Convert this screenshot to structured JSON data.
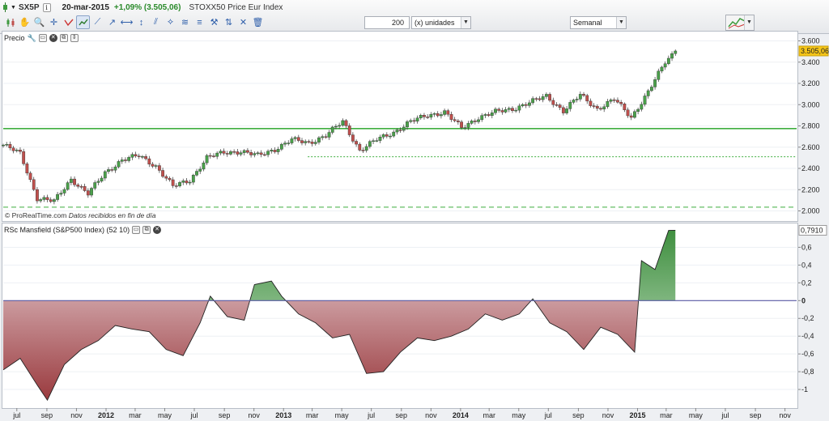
{
  "toolbar": {
    "symbol": "SX5P",
    "date": "20-mar-2015",
    "change": "+1,09% (3.505,06)",
    "instrument_name": "STOXX50 Price Eur Index",
    "units_value": "200",
    "units_label": "(x) unidades",
    "period": "Semanal",
    "tool_icons": [
      "candlestick-icon",
      "line-style-icon",
      "hand-icon",
      "zoom-icon",
      "trendline-red-icon",
      "indicator-icon",
      "line-tool-icon",
      "ray-tool-icon",
      "vertical-line-icon",
      "parallel-tool-icon",
      "fan-tool-icon",
      "channel-icon",
      "fibonacci-icon",
      "hammer-icon",
      "arrows-icon",
      "cross-icon",
      "trash-icon"
    ],
    "colors": {
      "positive": "#2a8a2a"
    }
  },
  "main_panel": {
    "label": "Precio",
    "credit_brand": "© ProRealTime.com",
    "credit_note": "Datos recibidos en fin de día"
  },
  "rs_panel": {
    "label": "RSc Mansfield (S&P500 Index) (52 10)"
  },
  "chart_data": [
    {
      "type": "candlestick",
      "title": "SX5P",
      "ylim": [
        1920,
        3680
      ],
      "yticks": [
        2000,
        2200,
        2400,
        2600,
        2800,
        3000,
        3200,
        3400,
        3600
      ],
      "ytick_labels": [
        "2.000",
        "2.200",
        "2.400",
        "2.600",
        "2.800",
        "3.000",
        "3.200",
        "3.400",
        "3.600"
      ],
      "last_value_label": "3.505,06",
      "last_value": 3505.06,
      "horizontal_lines": [
        {
          "value": 2775,
          "style": "solid",
          "color": "#3fae3f"
        },
        {
          "value": 2510,
          "style": "dotted",
          "color": "#3fae3f",
          "start_date": "2013-02-20"
        },
        {
          "value": 2035,
          "style": "dashed",
          "color": "#3fae3f"
        }
      ],
      "colors": {
        "up": "#4aa14a",
        "down": "#c0504d"
      },
      "close_series": {
        "x": [
          "2011-06-03",
          "2011-07-08",
          "2011-08-12",
          "2011-09-16",
          "2011-10-21",
          "2011-11-25",
          "2011-12-30",
          "2012-02-03",
          "2012-03-09",
          "2012-04-13",
          "2012-05-18",
          "2012-06-22",
          "2012-07-27",
          "2012-08-31",
          "2012-10-05",
          "2012-11-09",
          "2012-12-14",
          "2013-01-18",
          "2013-02-22",
          "2013-03-29",
          "2013-05-03",
          "2013-06-07",
          "2013-07-12",
          "2013-08-16",
          "2013-09-20",
          "2013-10-25",
          "2013-11-29",
          "2014-01-03",
          "2014-02-07",
          "2014-03-14",
          "2014-04-18",
          "2014-05-23",
          "2014-06-27",
          "2014-08-01",
          "2014-09-05",
          "2014-10-10",
          "2014-11-14",
          "2014-12-19",
          "2015-01-23",
          "2015-02-27",
          "2015-03-20"
        ],
        "y": [
          2620,
          2540,
          2120,
          2090,
          2300,
          2160,
          2360,
          2480,
          2520,
          2420,
          2230,
          2290,
          2500,
          2550,
          2560,
          2520,
          2580,
          2670,
          2640,
          2710,
          2840,
          2570,
          2670,
          2740,
          2840,
          2900,
          2930,
          2780,
          2880,
          2930,
          2960,
          3020,
          3080,
          2940,
          3090,
          2960,
          3050,
          2880,
          3120,
          3400,
          3505.06
        ]
      }
    },
    {
      "type": "area",
      "title": "RSc Mansfield (S&P500 Index) (52 10)",
      "ylim": [
        -1.2,
        0.85
      ],
      "yticks": [
        -1,
        -0.8,
        -0.6,
        -0.4,
        -0.2,
        0,
        0.2,
        0.4,
        0.6
      ],
      "ytick_labels": [
        "-1",
        "-0,8",
        "-0,6",
        "-0,4",
        "-0,2",
        "0",
        "0,2",
        "0,4",
        "0,6"
      ],
      "last_value_label": "0,7910",
      "last_value": 0.791,
      "colors": {
        "positive": "#4f9a4f",
        "negative": "#b84a4a",
        "zero_line": "#5a5aa5"
      },
      "x": [
        "2011-06-03",
        "2011-07-08",
        "2011-08-12",
        "2011-09-02",
        "2011-10-07",
        "2011-11-11",
        "2011-12-16",
        "2012-01-20",
        "2012-02-24",
        "2012-03-30",
        "2012-05-04",
        "2012-06-08",
        "2012-07-13",
        "2012-08-03",
        "2012-09-07",
        "2012-10-12",
        "2012-11-02",
        "2012-12-07",
        "2012-12-28",
        "2013-02-01",
        "2013-03-08",
        "2013-04-12",
        "2013-05-17",
        "2013-06-21",
        "2013-07-26",
        "2013-08-30",
        "2013-10-04",
        "2013-11-08",
        "2013-12-13",
        "2014-01-17",
        "2014-02-21",
        "2014-03-28",
        "2014-05-02",
        "2014-05-30",
        "2014-07-04",
        "2014-08-08",
        "2014-09-12",
        "2014-10-17",
        "2014-11-21",
        "2014-12-26",
        "2015-01-09",
        "2015-02-06",
        "2015-03-06",
        "2015-03-20"
      ],
      "y": [
        -0.78,
        -0.65,
        -0.95,
        -1.12,
        -0.72,
        -0.55,
        -0.45,
        -0.28,
        -0.32,
        -0.35,
        -0.55,
        -0.62,
        -0.25,
        0.05,
        -0.18,
        -0.22,
        0.18,
        0.22,
        0.05,
        -0.15,
        -0.25,
        -0.42,
        -0.38,
        -0.82,
        -0.8,
        -0.58,
        -0.42,
        -0.45,
        -0.4,
        -0.32,
        -0.15,
        -0.22,
        -0.15,
        0.02,
        -0.25,
        -0.35,
        -0.55,
        -0.3,
        -0.38,
        -0.58,
        0.45,
        0.35,
        0.79,
        0.791
      ]
    }
  ],
  "time_axis": {
    "labels": [
      {
        "text": "jul",
        "date": "2011-07-01",
        "bold": false
      },
      {
        "text": "sep",
        "date": "2011-09-01",
        "bold": false
      },
      {
        "text": "nov",
        "date": "2011-11-01",
        "bold": false
      },
      {
        "text": "2012",
        "date": "2012-01-01",
        "bold": true
      },
      {
        "text": "mar",
        "date": "2012-03-01",
        "bold": false
      },
      {
        "text": "may",
        "date": "2012-05-01",
        "bold": false
      },
      {
        "text": "jul",
        "date": "2012-07-01",
        "bold": false
      },
      {
        "text": "sep",
        "date": "2012-09-01",
        "bold": false
      },
      {
        "text": "nov",
        "date": "2012-11-01",
        "bold": false
      },
      {
        "text": "2013",
        "date": "2013-01-01",
        "bold": true
      },
      {
        "text": "mar",
        "date": "2013-03-01",
        "bold": false
      },
      {
        "text": "may",
        "date": "2013-05-01",
        "bold": false
      },
      {
        "text": "jul",
        "date": "2013-07-01",
        "bold": false
      },
      {
        "text": "sep",
        "date": "2013-09-01",
        "bold": false
      },
      {
        "text": "nov",
        "date": "2013-11-01",
        "bold": false
      },
      {
        "text": "2014",
        "date": "2014-01-01",
        "bold": true
      },
      {
        "text": "mar",
        "date": "2014-03-01",
        "bold": false
      },
      {
        "text": "may",
        "date": "2014-05-01",
        "bold": false
      },
      {
        "text": "jul",
        "date": "2014-07-01",
        "bold": false
      },
      {
        "text": "sep",
        "date": "2014-09-01",
        "bold": false
      },
      {
        "text": "nov",
        "date": "2014-11-01",
        "bold": false
      },
      {
        "text": "2015",
        "date": "2015-01-01",
        "bold": true
      },
      {
        "text": "mar",
        "date": "2015-03-01",
        "bold": false
      },
      {
        "text": "may",
        "date": "2015-05-01",
        "bold": false
      },
      {
        "text": "jul",
        "date": "2015-07-01",
        "bold": false
      },
      {
        "text": "sep",
        "date": "2015-09-01",
        "bold": false
      },
      {
        "text": "nov",
        "date": "2015-11-01",
        "bold": false
      }
    ]
  }
}
